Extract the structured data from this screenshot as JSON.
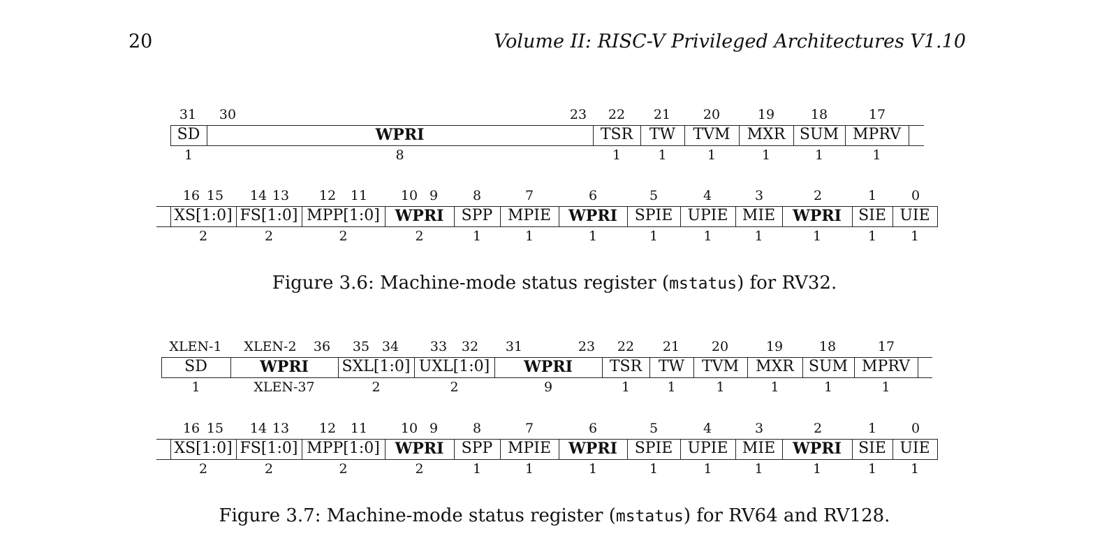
{
  "header": {
    "page_number": "20",
    "running_title": "Volume II: RISC-V Privileged Architectures V1.10"
  },
  "figure_3_6": {
    "upper": {
      "bit_labels": [
        "31",
        "30",
        "23",
        "22",
        "21",
        "20",
        "19",
        "18",
        "17"
      ],
      "fields": [
        "SD",
        "WPRI",
        "TSR",
        "TW",
        "TVM",
        "MXR",
        "SUM",
        "MPRV"
      ],
      "widths": [
        "1",
        "8",
        "1",
        "1",
        "1",
        "1",
        "1",
        "1"
      ]
    },
    "lower": {
      "bit_labels": [
        "16",
        "15",
        "14",
        "13",
        "12",
        "11",
        "10",
        "9",
        "8",
        "7",
        "6",
        "5",
        "4",
        "3",
        "2",
        "1",
        "0"
      ],
      "fields": [
        "XS[1:0]",
        "FS[1:0]",
        "MPP[1:0]",
        "WPRI",
        "SPP",
        "MPIE",
        "WPRI",
        "SPIE",
        "UPIE",
        "MIE",
        "WPRI",
        "SIE",
        "UIE"
      ],
      "widths": [
        "2",
        "2",
        "2",
        "2",
        "1",
        "1",
        "1",
        "1",
        "1",
        "1",
        "1",
        "1",
        "1"
      ]
    },
    "caption": {
      "prefix": "Figure 3.6: Machine-mode status register (",
      "code": "mstatus",
      "suffix": ") for RV32."
    }
  },
  "figure_3_7": {
    "upper": {
      "bit_labels": [
        "XLEN-1",
        "XLEN-2",
        "36",
        "35",
        "34",
        "33",
        "32",
        "31",
        "23",
        "22",
        "21",
        "20",
        "19",
        "18",
        "17"
      ],
      "fields": [
        "SD",
        "WPRI",
        "SXL[1:0]",
        "UXL[1:0]",
        "WPRI",
        "TSR",
        "TW",
        "TVM",
        "MXR",
        "SUM",
        "MPRV"
      ],
      "widths": [
        "1",
        "XLEN-37",
        "2",
        "2",
        "9",
        "1",
        "1",
        "1",
        "1",
        "1",
        "1"
      ]
    },
    "lower": {
      "bit_labels": [
        "16",
        "15",
        "14",
        "13",
        "12",
        "11",
        "10",
        "9",
        "8",
        "7",
        "6",
        "5",
        "4",
        "3",
        "2",
        "1",
        "0"
      ],
      "fields": [
        "XS[1:0]",
        "FS[1:0]",
        "MPP[1:0]",
        "WPRI",
        "SPP",
        "MPIE",
        "WPRI",
        "SPIE",
        "UPIE",
        "MIE",
        "WPRI",
        "SIE",
        "UIE"
      ],
      "widths": [
        "2",
        "2",
        "2",
        "2",
        "1",
        "1",
        "1",
        "1",
        "1",
        "1",
        "1",
        "1",
        "1"
      ]
    },
    "caption": {
      "prefix": "Figure 3.7: Machine-mode status register (",
      "code": "mstatus",
      "suffix": ") for RV64 and RV128."
    }
  }
}
